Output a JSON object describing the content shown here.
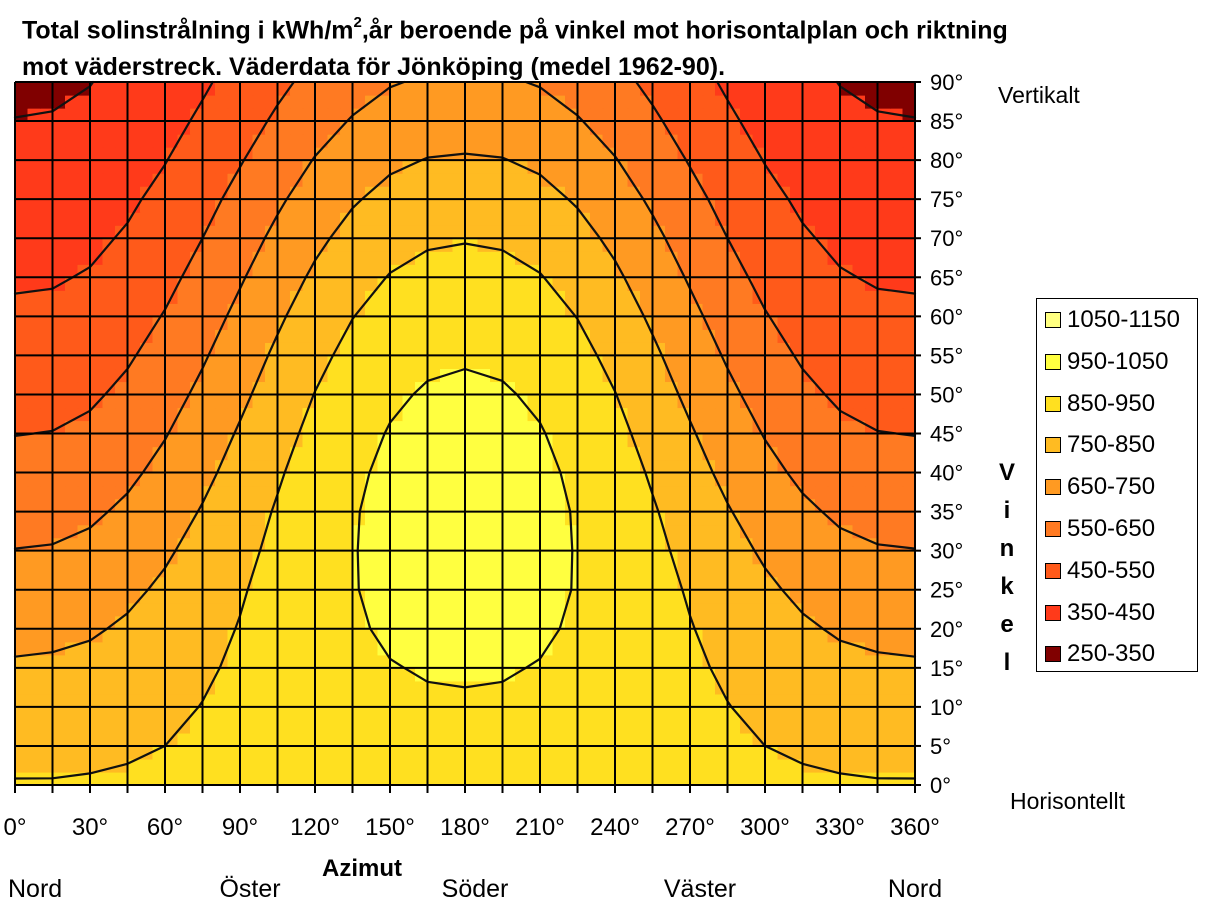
{
  "title_part1": "Total solinstrålning i kWh/m",
  "title_sup": "2",
  "title_part2": ",år beroende på vinkel mot horisontalplan och riktning mot väderstreck. Väderdata för Jönköping (medel 1962-90).",
  "chart_data": {
    "type": "heatmap",
    "x": [
      0,
      15,
      30,
      45,
      60,
      75,
      90,
      105,
      120,
      135,
      150,
      165,
      180,
      195,
      210,
      225,
      240,
      255,
      270,
      285,
      300,
      315,
      330,
      345,
      360
    ],
    "y": [
      0,
      5,
      10,
      15,
      20,
      25,
      30,
      35,
      40,
      45,
      50,
      55,
      60,
      65,
      70,
      75,
      80,
      85,
      90
    ],
    "x_ticks": [
      "0°",
      "30°",
      "60°",
      "90°",
      "120°",
      "150°",
      "180°",
      "210°",
      "240°",
      "270°",
      "300°",
      "330°",
      "360°"
    ],
    "y_ticks": [
      "0°",
      "5°",
      "10°",
      "15°",
      "20°",
      "25°",
      "30°",
      "35°",
      "40°",
      "45°",
      "50°",
      "55°",
      "60°",
      "65°",
      "70°",
      "75°",
      "80°",
      "85°",
      "90°"
    ],
    "xlim": [
      0,
      360
    ],
    "ylim": [
      0,
      90
    ],
    "xlabel": "Azimut",
    "ylabel": "Vinkel",
    "y_top_label": "Vertikalt",
    "y_bottom_label": "Horisontellt",
    "direction_labels": [
      {
        "text": "Nord",
        "azimuth": 0
      },
      {
        "text": "Öster",
        "azimuth": 90
      },
      {
        "text": "Söder",
        "azimuth": 180
      },
      {
        "text": "Väster",
        "azimuth": 270
      },
      {
        "text": "Nord",
        "azimuth": 360
      }
    ],
    "legend": [
      {
        "label": "1050-1150",
        "min": 1050,
        "max": 1150,
        "color": "#ffff80"
      },
      {
        "label": "950-1050",
        "min": 950,
        "max": 1050,
        "color": "#ffff40"
      },
      {
        "label": "850-950",
        "min": 850,
        "max": 950,
        "color": "#ffe020"
      },
      {
        "label": "750-850",
        "min": 750,
        "max": 850,
        "color": "#ffbb22"
      },
      {
        "label": "650-750",
        "min": 650,
        "max": 750,
        "color": "#ff9a22"
      },
      {
        "label": "550-650",
        "min": 550,
        "max": 650,
        "color": "#ff7a22"
      },
      {
        "label": "450-550",
        "min": 450,
        "max": 550,
        "color": "#ff5a1a"
      },
      {
        "label": "350-450",
        "min": 350,
        "max": 450,
        "color": "#ff3a1a"
      },
      {
        "label": "250-350",
        "min": 250,
        "max": 350,
        "color": "#800000"
      }
    ],
    "grid": true,
    "legend_position": "right",
    "values": [
      [
        855,
        855,
        858,
        863,
        870,
        878,
        886,
        893,
        900,
        906,
        910,
        913,
        913,
        913,
        910,
        906,
        900,
        893,
        886,
        878,
        870,
        863,
        858,
        855,
        855
      ],
      [
        825,
        826,
        831,
        839,
        850,
        864,
        878,
        892,
        905,
        914,
        922,
        925,
        930,
        925,
        922,
        914,
        905,
        892,
        878,
        864,
        850,
        839,
        831,
        826,
        825
      ],
      [
        795,
        798,
        805,
        817,
        833,
        852,
        872,
        892,
        910,
        923,
        934,
        941,
        942,
        941,
        934,
        923,
        910,
        892,
        872,
        852,
        833,
        817,
        805,
        798,
        795
      ],
      [
        760,
        764,
        773,
        790,
        812,
        838,
        864,
        890,
        914,
        932,
        947,
        955,
        958,
        955,
        947,
        932,
        914,
        890,
        864,
        838,
        812,
        790,
        773,
        764,
        760
      ],
      [
        725,
        729,
        740,
        762,
        790,
        822,
        854,
        887,
        917,
        941,
        960,
        970,
        973,
        970,
        960,
        941,
        917,
        887,
        854,
        822,
        790,
        762,
        740,
        729,
        725
      ],
      [
        690,
        694,
        707,
        732,
        765,
        803,
        842,
        881,
        917,
        946,
        970,
        983,
        988,
        983,
        970,
        946,
        917,
        881,
        842,
        803,
        765,
        732,
        707,
        694,
        690
      ],
      [
        652,
        656,
        671,
        700,
        738,
        781,
        826,
        871,
        913,
        946,
        975,
        991,
        997,
        991,
        975,
        946,
        913,
        871,
        826,
        781,
        738,
        700,
        671,
        656,
        652
      ],
      [
        615,
        619,
        635,
        666,
        708,
        756,
        807,
        858,
        905,
        944,
        975,
        993,
        1000,
        993,
        975,
        944,
        905,
        858,
        807,
        756,
        708,
        666,
        635,
        619,
        615
      ],
      [
        580,
        584,
        600,
        632,
        676,
        728,
        784,
        840,
        892,
        935,
        968,
        988,
        995,
        988,
        968,
        935,
        892,
        840,
        784,
        728,
        676,
        632,
        600,
        584,
        580
      ],
      [
        548,
        552,
        568,
        600,
        645,
        700,
        759,
        818,
        874,
        920,
        955,
        976,
        983,
        976,
        955,
        920,
        874,
        818,
        759,
        700,
        645,
        600,
        568,
        552,
        548
      ],
      [
        518,
        522,
        537,
        569,
        614,
        670,
        731,
        793,
        852,
        900,
        937,
        958,
        965,
        958,
        937,
        900,
        852,
        793,
        731,
        670,
        614,
        569,
        537,
        522,
        518
      ],
      [
        490,
        494,
        509,
        540,
        584,
        640,
        702,
        766,
        826,
        876,
        914,
        935,
        942,
        935,
        914,
        876,
        826,
        766,
        702,
        640,
        584,
        540,
        509,
        494,
        490
      ],
      [
        464,
        467,
        481,
        511,
        555,
        610,
        672,
        736,
        797,
        848,
        886,
        907,
        914,
        907,
        886,
        848,
        797,
        736,
        672,
        610,
        555,
        511,
        481,
        467,
        464
      ],
      [
        440,
        443,
        456,
        484,
        526,
        580,
        641,
        704,
        765,
        816,
        854,
        875,
        882,
        875,
        854,
        816,
        765,
        704,
        641,
        580,
        526,
        484,
        456,
        443,
        440
      ],
      [
        418,
        421,
        433,
        459,
        499,
        550,
        609,
        671,
        730,
        780,
        818,
        839,
        845,
        839,
        818,
        780,
        730,
        671,
        609,
        550,
        499,
        459,
        433,
        421,
        418
      ],
      [
        398,
        400,
        411,
        436,
        473,
        521,
        577,
        636,
        693,
        741,
        777,
        797,
        803,
        797,
        777,
        741,
        693,
        636,
        577,
        521,
        473,
        436,
        411,
        400,
        398
      ],
      [
        378,
        380,
        390,
        413,
        447,
        492,
        544,
        600,
        654,
        699,
        734,
        753,
        758,
        753,
        734,
        699,
        654,
        600,
        544,
        492,
        447,
        413,
        390,
        380,
        378
      ],
      [
        352,
        355,
        366,
        390,
        422,
        464,
        512,
        564,
        614,
        656,
        688,
        706,
        710,
        706,
        688,
        656,
        614,
        564,
        512,
        464,
        422,
        390,
        366,
        355,
        352
      ],
      [
        330,
        335,
        348,
        372,
        400,
        438,
        482,
        530,
        576,
        614,
        644,
        660,
        664,
        660,
        644,
        614,
        576,
        530,
        482,
        438,
        400,
        372,
        348,
        335,
        330
      ]
    ]
  }
}
